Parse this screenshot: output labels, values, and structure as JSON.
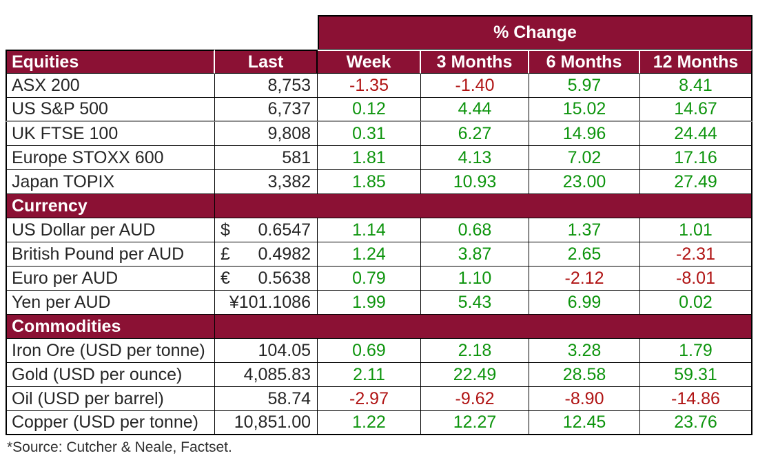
{
  "chart_data": {
    "type": "table",
    "group_header": "% Change",
    "column_headers": [
      "Equities",
      "Last",
      "Week",
      "3 Months",
      "6 Months",
      "12 Months"
    ],
    "sections": [
      {
        "title": "Equities",
        "show_title_row": false,
        "rows": [
          {
            "name": "ASX 200",
            "last": "8,753",
            "changes": [
              "-1.35",
              "-1.40",
              "5.97",
              "8.41"
            ]
          },
          {
            "name": "US S&P 500",
            "last": "6,737",
            "changes": [
              "0.12",
              "4.44",
              "15.02",
              "14.67"
            ],
            "thick_divider_below": true
          },
          {
            "name": "UK FTSE 100",
            "last": "9,808",
            "changes": [
              "0.31",
              "6.27",
              "14.96",
              "24.44"
            ]
          },
          {
            "name": "Europe STOXX 600",
            "last": "581",
            "changes": [
              "1.81",
              "4.13",
              "7.02",
              "17.16"
            ]
          },
          {
            "name": "Japan TOPIX",
            "last": "3,382",
            "changes": [
              "1.85",
              "10.93",
              "23.00",
              "27.49"
            ]
          }
        ]
      },
      {
        "title": "Currency",
        "show_title_row": true,
        "rows": [
          {
            "name": "US Dollar per AUD",
            "symbol": "$",
            "symbol_attached": false,
            "last": "0.6547",
            "changes": [
              "1.14",
              "0.68",
              "1.37",
              "1.01"
            ]
          },
          {
            "name": "British Pound per AUD",
            "symbol": "£",
            "symbol_attached": false,
            "last": "0.4982",
            "changes": [
              "1.24",
              "3.87",
              "2.65",
              "-2.31"
            ]
          },
          {
            "name": "Euro per AUD",
            "symbol": "€",
            "symbol_attached": false,
            "last": "0.5638",
            "changes": [
              "0.79",
              "1.10",
              "-2.12",
              "-8.01"
            ]
          },
          {
            "name": "Yen per AUD",
            "symbol": "¥",
            "symbol_attached": true,
            "last": "101.1086",
            "changes": [
              "1.99",
              "5.43",
              "6.99",
              "0.02"
            ]
          }
        ]
      },
      {
        "title": "Commodities",
        "show_title_row": true,
        "rows": [
          {
            "name": "Iron Ore (USD per tonne)",
            "last": "104.05",
            "changes": [
              "0.69",
              "2.18",
              "3.28",
              "1.79"
            ]
          },
          {
            "name": "Gold (USD per ounce)",
            "last": "4,085.83",
            "changes": [
              "2.11",
              "22.49",
              "28.58",
              "59.31"
            ]
          },
          {
            "name": "Oil (USD per barrel)",
            "last": "58.74",
            "changes": [
              "-2.97",
              "-9.62",
              "-8.90",
              "-14.86"
            ]
          },
          {
            "name": "Copper (USD per tonne)",
            "last": "10,851.00",
            "changes": [
              "1.22",
              "12.27",
              "12.45",
              "23.76"
            ]
          }
        ]
      }
    ]
  },
  "footer": {
    "source": "*Source: Cutcher & Neale, Factset."
  },
  "colors": {
    "header_maroon": "#8B1134",
    "positive_green": "#0D940D",
    "negative_red": "#B01414",
    "body_text": "#262626",
    "grid_line": "#000000",
    "header_text": "#FFFFFF",
    "section_divider_gray": "#8F8F8F"
  }
}
